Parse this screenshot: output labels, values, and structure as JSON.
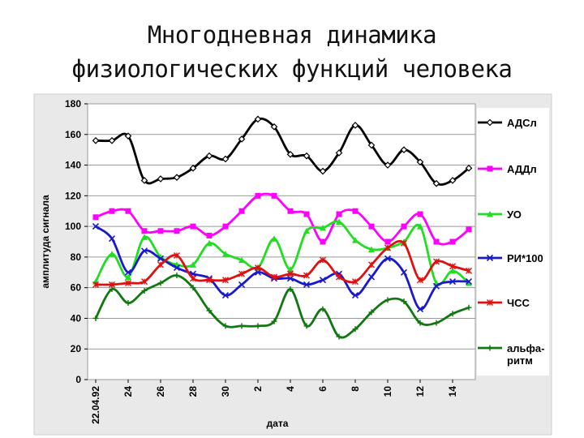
{
  "slide": {
    "title_line1": "Многодневная динамика",
    "title_line2": "физиологических функций человека"
  },
  "chart_data": {
    "type": "line",
    "title": "",
    "xlabel": "дата",
    "ylabel": "амплитуда сигнала",
    "ylim": [
      0,
      180
    ],
    "yticks": [
      0,
      20,
      40,
      60,
      80,
      100,
      120,
      140,
      160,
      180
    ],
    "x_count": 24,
    "x_tick_labels": [
      {
        "index": 0,
        "label": "22.04.92"
      },
      {
        "index": 2,
        "label": "24"
      },
      {
        "index": 4,
        "label": "26"
      },
      {
        "index": 6,
        "label": "28"
      },
      {
        "index": 8,
        "label": "30"
      },
      {
        "index": 10,
        "label": "2"
      },
      {
        "index": 12,
        "label": "4"
      },
      {
        "index": 14,
        "label": "6"
      },
      {
        "index": 16,
        "label": "8"
      },
      {
        "index": 18,
        "label": "10"
      },
      {
        "index": 20,
        "label": "12"
      },
      {
        "index": 22,
        "label": "14"
      }
    ],
    "grid": true,
    "legend_position": "right",
    "series": [
      {
        "name": "АДСл",
        "color": "#000000",
        "marker": "diamond-open",
        "values": [
          156,
          156,
          159,
          130,
          131,
          132,
          138,
          146,
          144,
          157,
          170,
          165,
          147,
          146,
          136,
          148,
          166,
          153,
          140,
          150,
          142,
          128,
          130,
          138
        ]
      },
      {
        "name": "АДДл",
        "color": "#ff00ff",
        "marker": "square",
        "values": [
          106,
          110,
          110,
          97,
          97,
          97,
          100,
          94,
          100,
          110,
          120,
          120,
          110,
          108,
          90,
          108,
          110,
          100,
          90,
          100,
          108,
          90,
          90,
          98
        ]
      },
      {
        "name": "УО",
        "color": "#22dd22",
        "marker": "triangle",
        "values": [
          64,
          82,
          67,
          93,
          80,
          75,
          75,
          89,
          82,
          78,
          73,
          92,
          72,
          97,
          99,
          103,
          91,
          85,
          86,
          90,
          100,
          63,
          71,
          63
        ]
      },
      {
        "name": "РИ*100",
        "color": "#1a1acc",
        "marker": "x",
        "values": [
          100,
          92,
          70,
          84,
          79,
          73,
          69,
          66,
          55,
          62,
          70,
          66,
          66,
          62,
          65,
          69,
          55,
          67,
          79,
          70,
          46,
          61,
          64,
          64
        ]
      },
      {
        "name": "ЧСС",
        "color": "#dd1111",
        "marker": "asterisk",
        "values": [
          62,
          62,
          63,
          64,
          75,
          81,
          66,
          65,
          65,
          69,
          73,
          67,
          69,
          68,
          78,
          67,
          64,
          75,
          86,
          89,
          65,
          77,
          74,
          71
        ]
      },
      {
        "name": "альфа-\nритм",
        "color": "#117711",
        "marker": "plus",
        "values": [
          40,
          59,
          50,
          58,
          63,
          68,
          60,
          45,
          35,
          35,
          35,
          38,
          59,
          35,
          46,
          28,
          33,
          44,
          52,
          51,
          37,
          37,
          43,
          47
        ]
      }
    ]
  }
}
